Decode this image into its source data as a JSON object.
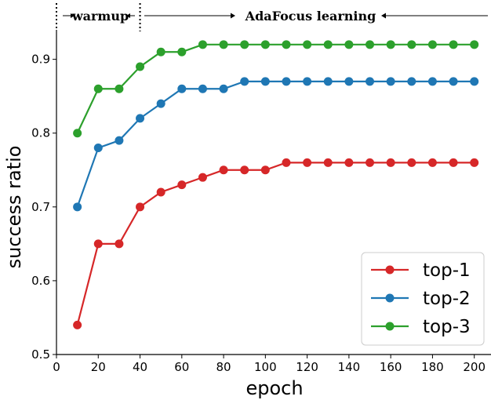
{
  "chart_data": {
    "type": "line",
    "title": "",
    "xlabel": "epoch",
    "ylabel": "success ratio",
    "xlim": [
      0,
      208
    ],
    "ylim": [
      0.5,
      0.94
    ],
    "xticks": [
      0,
      20,
      40,
      60,
      80,
      100,
      120,
      140,
      160,
      180,
      200
    ],
    "yticks": [
      0.5,
      0.6,
      0.7,
      0.8,
      0.9
    ],
    "x": [
      10,
      20,
      30,
      40,
      50,
      60,
      70,
      80,
      90,
      100,
      110,
      120,
      130,
      140,
      150,
      160,
      170,
      180,
      190,
      200
    ],
    "series": [
      {
        "name": "top-1",
        "color": "#d62728",
        "values": [
          0.54,
          0.65,
          0.65,
          0.7,
          0.72,
          0.73,
          0.74,
          0.75,
          0.75,
          0.75,
          0.76,
          0.76,
          0.76,
          0.76,
          0.76,
          0.76,
          0.76,
          0.76,
          0.76,
          0.76
        ]
      },
      {
        "name": "top-2",
        "color": "#1f77b4",
        "values": [
          0.7,
          0.78,
          0.79,
          0.82,
          0.84,
          0.86,
          0.86,
          0.86,
          0.87,
          0.87,
          0.87,
          0.87,
          0.87,
          0.87,
          0.87,
          0.87,
          0.87,
          0.87,
          0.87,
          0.87
        ]
      },
      {
        "name": "top-3",
        "color": "#2ca02c",
        "values": [
          0.8,
          0.86,
          0.86,
          0.89,
          0.91,
          0.91,
          0.92,
          0.92,
          0.92,
          0.92,
          0.92,
          0.92,
          0.92,
          0.92,
          0.92,
          0.92,
          0.92,
          0.92,
          0.92,
          0.92
        ]
      }
    ],
    "phases": [
      {
        "label": "warmup",
        "start": 0,
        "end": 40
      },
      {
        "label": "AdaFocus learning",
        "start": 40,
        "end": 208
      }
    ],
    "grid": false,
    "legend_position": "lower-right"
  }
}
